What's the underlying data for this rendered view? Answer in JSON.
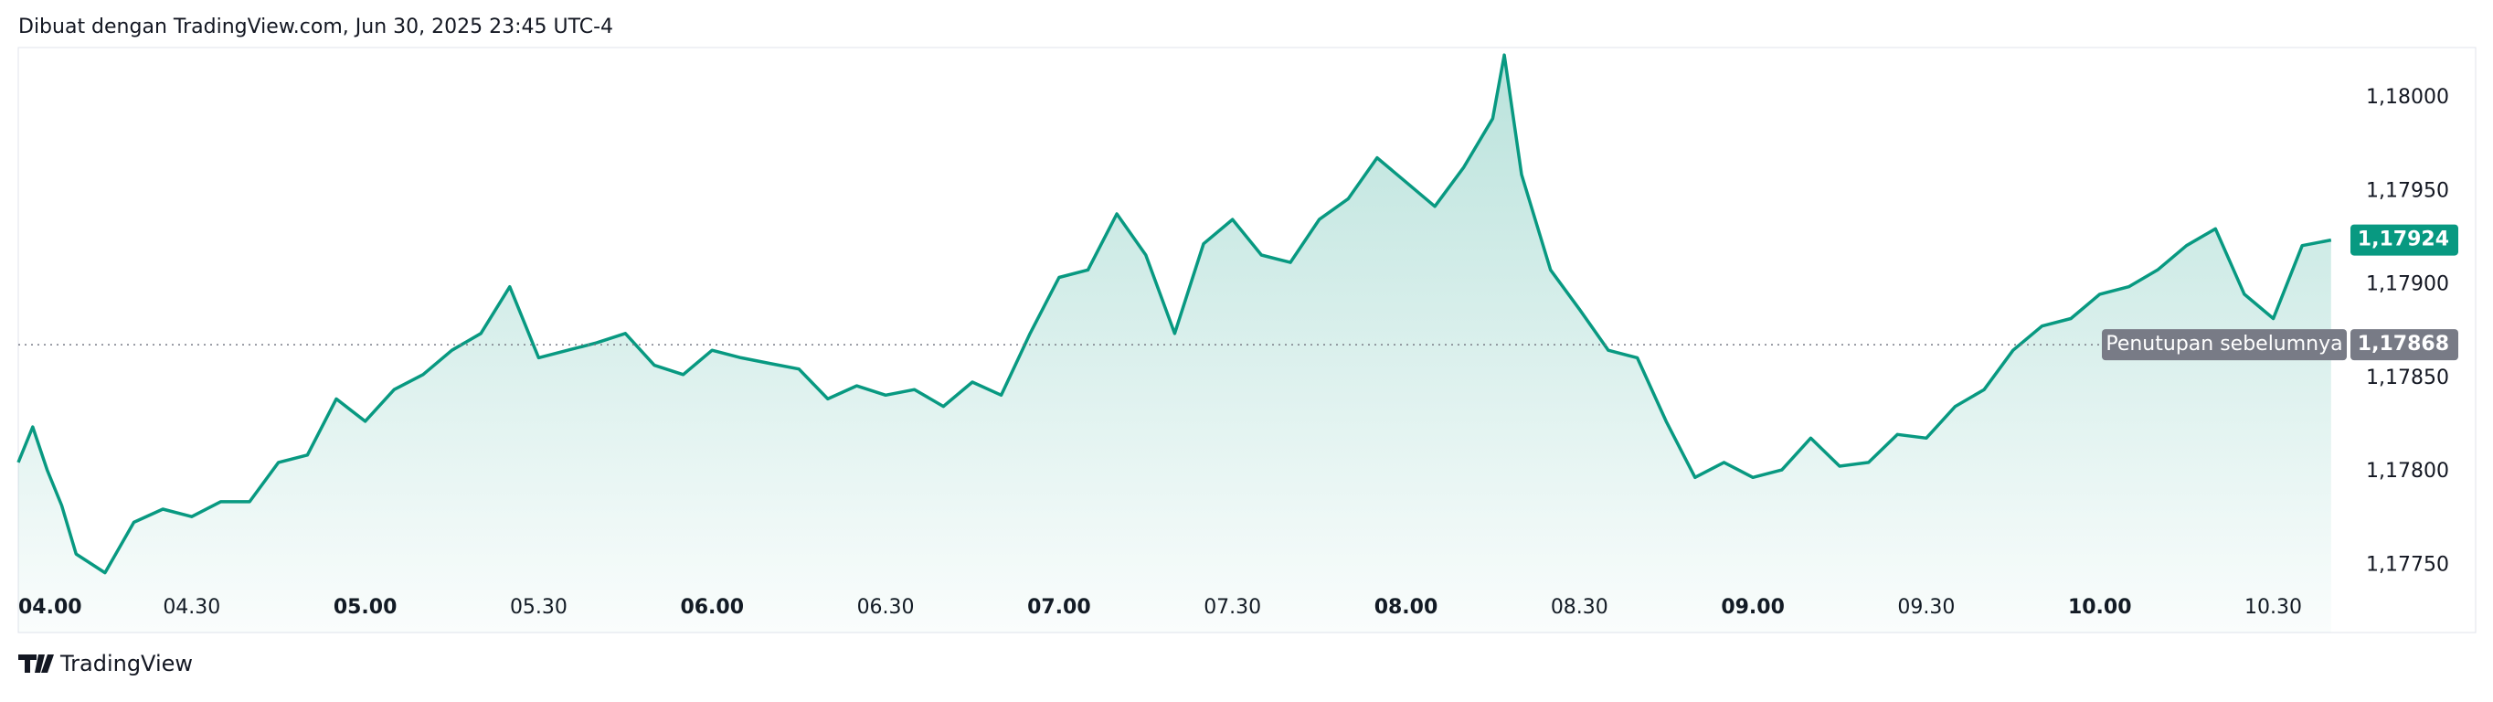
{
  "header": "Dibuat dengan TradingView.com, Jun 30, 2025 23:45 UTC-4",
  "footer": "TradingView",
  "chart_data": {
    "type": "line",
    "x": [
      0,
      2.5,
      5,
      7.5,
      10,
      15,
      20,
      25,
      30,
      35,
      40,
      45,
      50,
      55,
      60,
      65,
      70,
      75,
      80,
      85,
      90,
      95,
      100,
      105,
      110,
      115,
      120,
      125,
      130,
      135,
      140,
      145,
      150,
      155,
      160,
      165,
      170,
      175,
      180,
      185,
      190,
      195,
      200,
      205,
      210,
      215,
      220,
      225,
      230,
      235,
      240,
      245,
      250,
      255,
      257,
      260,
      265,
      270,
      275,
      280,
      285,
      290,
      295,
      300,
      305,
      310,
      315,
      320,
      325,
      330,
      335,
      340,
      345,
      350,
      355,
      360,
      365,
      370,
      375,
      380,
      385,
      390,
      395,
      400
    ],
    "series": [
      {
        "color": "#089981",
        "values": [
          1.17805,
          1.17824,
          1.17801,
          1.17782,
          1.17756,
          1.17746,
          1.17773,
          1.1778,
          1.17776,
          1.17784,
          1.17784,
          1.17805,
          1.17809,
          1.17839,
          1.17827,
          1.17844,
          1.17852,
          1.17865,
          1.17874,
          1.17899,
          1.17861,
          1.17865,
          1.17869,
          1.17874,
          1.17857,
          1.17852,
          1.17865,
          1.17861,
          1.17858,
          1.17855,
          1.17839,
          1.17846,
          1.17841,
          1.17844,
          1.17835,
          1.17848,
          1.17841,
          1.17874,
          1.17904,
          1.17908,
          1.17938,
          1.17916,
          1.17874,
          1.17922,
          1.17935,
          1.17916,
          1.17912,
          1.17935,
          1.17946,
          1.17968,
          1.17955,
          1.17942,
          1.17963,
          1.17989,
          1.18023,
          1.17959,
          1.17908,
          1.17887,
          1.17865,
          1.17861,
          1.17827,
          1.17797,
          1.17805,
          1.17797,
          1.17801,
          1.17818,
          1.17803,
          1.17805,
          1.1782,
          1.17818,
          1.17835,
          1.17844,
          1.17865,
          1.17878,
          1.17882,
          1.17895,
          1.17899,
          1.17908,
          1.17921,
          1.1793,
          1.17895,
          1.17882,
          1.17921,
          1.17924
        ]
      }
    ],
    "xlim": [
      0,
      425
    ],
    "ylim": [
      1.17714,
      1.18027
    ],
    "xticks": [
      {
        "value": 0,
        "label": "04.00"
      },
      {
        "value": 30,
        "label": "04.30"
      },
      {
        "value": 60,
        "label": "05.00"
      },
      {
        "value": 90,
        "label": "05.30"
      },
      {
        "value": 120,
        "label": "06.00"
      },
      {
        "value": 150,
        "label": "06.30"
      },
      {
        "value": 180,
        "label": "07.00"
      },
      {
        "value": 210,
        "label": "07.30"
      },
      {
        "value": 240,
        "label": "08.00"
      },
      {
        "value": 270,
        "label": "08.30"
      },
      {
        "value": 300,
        "label": "09.00"
      },
      {
        "value": 330,
        "label": "09.30"
      },
      {
        "value": 360,
        "label": "10.00"
      },
      {
        "value": 390,
        "label": "10.30"
      }
    ],
    "yticks": [
      {
        "value": 1.1775,
        "label": "1,17750"
      },
      {
        "value": 1.178,
        "label": "1,17800"
      },
      {
        "value": 1.1785,
        "label": "1,17850"
      },
      {
        "value": 1.179,
        "label": "1,17900"
      },
      {
        "value": 1.1795,
        "label": "1,17950"
      },
      {
        "value": 1.18,
        "label": "1,18000"
      }
    ],
    "last_price": {
      "value": 1.17924,
      "label": "1,17924"
    },
    "previous_close": {
      "name": "Penutupan sebelumnya",
      "value": 1.17868,
      "label": "1,17868"
    }
  }
}
